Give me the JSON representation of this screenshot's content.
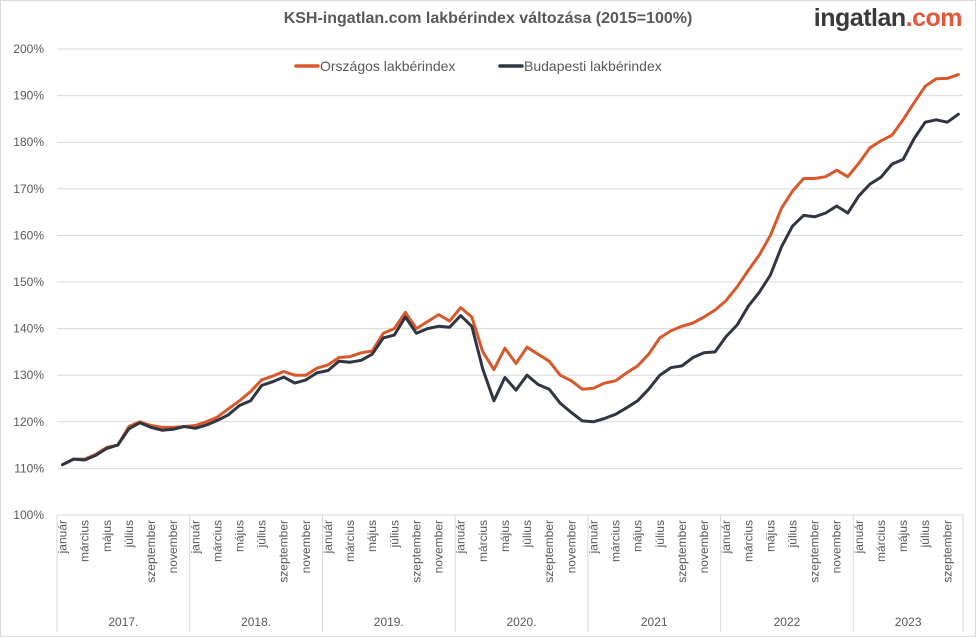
{
  "logo": {
    "main": "ingatlan",
    "suffix": ".com"
  },
  "chart_data": {
    "type": "line",
    "title": "KSH-ingatlan.com lakbérindex változása (2015=100%)",
    "xlabel": "",
    "ylabel": "",
    "ylim": [
      100,
      200
    ],
    "y_ticks": [
      "100%",
      "110%",
      "120%",
      "130%",
      "140%",
      "150%",
      "160%",
      "170%",
      "180%",
      "190%",
      "200%"
    ],
    "grid": true,
    "legend": "top-center",
    "years": [
      "2017.",
      "2018.",
      "2019.",
      "2020.",
      "2021",
      "2022",
      "2023"
    ],
    "month_labels": [
      "január",
      "március",
      "május",
      "július",
      "szeptember",
      "november"
    ],
    "x_start": "2017-01",
    "x_end": "2023-10",
    "series": [
      {
        "name": "Országos lakbérindex",
        "color": "#d9582b",
        "values": [
          110.8,
          112,
          112,
          113,
          114.5,
          115,
          119,
          120,
          119.2,
          118.8,
          118.8,
          119,
          119.2,
          120,
          121,
          122.8,
          124.5,
          126.5,
          129,
          129.8,
          130.8,
          130,
          130,
          131.5,
          132.2,
          133.8,
          134,
          134.8,
          135.2,
          139,
          140,
          143.5,
          140,
          141.5,
          143,
          141.6,
          144.5,
          142.5,
          135,
          131.2,
          135.8,
          132.5,
          136,
          134.5,
          133,
          130,
          128.8,
          127,
          127.2,
          128.3,
          128.8,
          130.5,
          132,
          134.5,
          138,
          139.5,
          140.5,
          141.2,
          142.5,
          144,
          146,
          149,
          152.5,
          155.8,
          160,
          165.8,
          169.5,
          172.2,
          172.2,
          172.6,
          174,
          172.6,
          175.5,
          178.8,
          180.3,
          181.5,
          184.8,
          188.5,
          192,
          193.6,
          193.7,
          194.5
        ]
      },
      {
        "name": "Budapesti lakbérindex",
        "color": "#2f3542",
        "values": [
          110.8,
          112,
          111.8,
          112.8,
          114.3,
          115,
          118.5,
          119.8,
          118.8,
          118.2,
          118.4,
          119,
          118.6,
          119.3,
          120.3,
          121.5,
          123.5,
          124.5,
          127.8,
          128.6,
          129.6,
          128.3,
          129,
          130.5,
          131,
          133,
          132.8,
          133.2,
          134.5,
          138,
          138.6,
          142.5,
          139,
          140,
          140.5,
          140.3,
          142.8,
          140.5,
          131.3,
          124.5,
          129.5,
          126.8,
          130,
          128,
          127,
          124,
          122,
          120.2,
          120,
          120.7,
          121.6,
          123,
          124.5,
          127,
          130,
          131.6,
          132,
          133.8,
          134.8,
          135,
          138.3,
          140.8,
          144.8,
          147.8,
          151.5,
          157.5,
          162,
          164.3,
          164,
          164.8,
          166.3,
          164.8,
          168.5,
          171,
          172.5,
          175.3,
          176.3,
          180.8,
          184.3,
          184.8,
          184.3,
          186
        ]
      }
    ]
  }
}
